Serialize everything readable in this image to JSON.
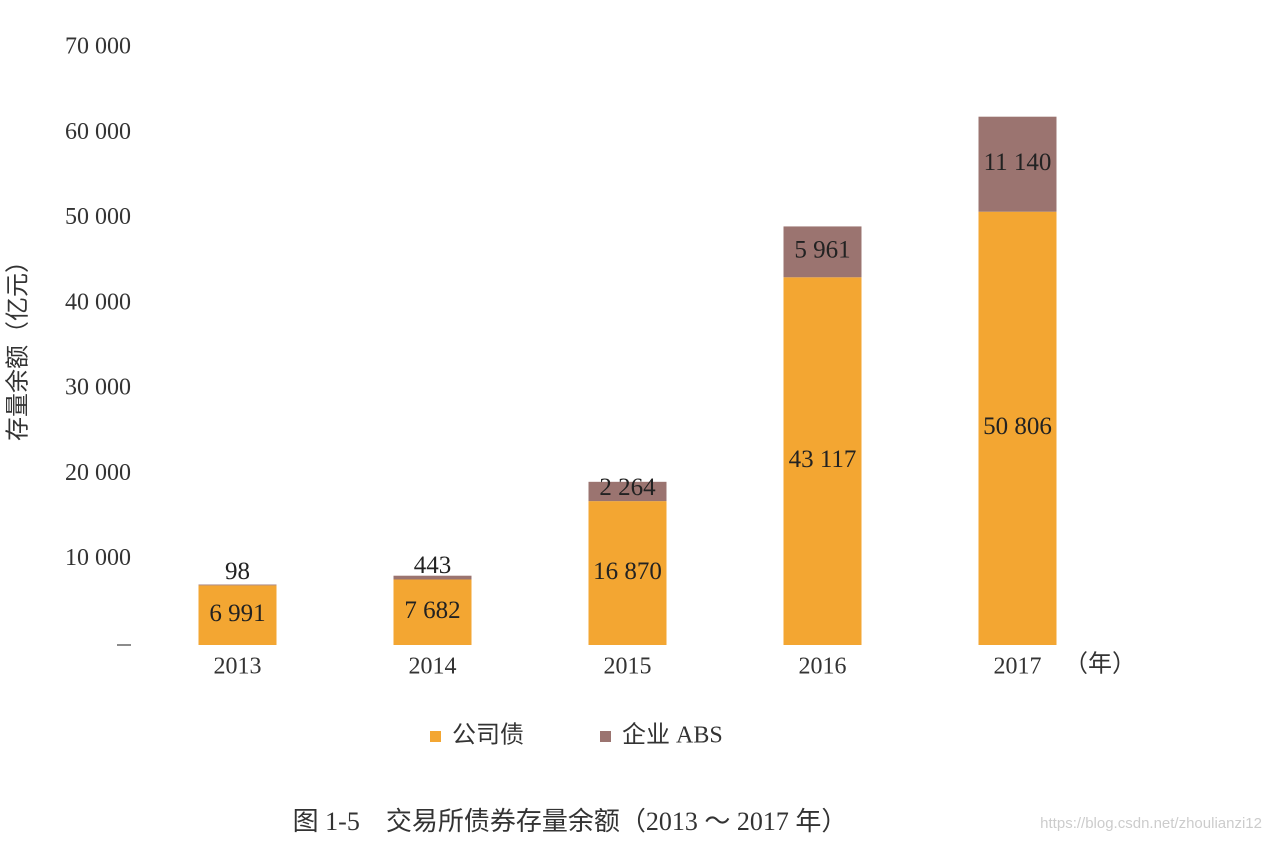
{
  "chart_data": {
    "type": "stacked-bar",
    "caption": "图 1-5　交易所债券存量余额（2013 ～ 2017 年）",
    "y_label": "存量余额（亿元）",
    "x_unit": "（年）",
    "watermark": "https://blog.csdn.net/zhoulianzi12",
    "categories": [
      "2013",
      "2014",
      "2015",
      "2016",
      "2017"
    ],
    "series": [
      {
        "name": "公司债",
        "color": "#f3a632",
        "values": [
          6991,
          7682,
          16870,
          43117,
          50806
        ],
        "value_labels": [
          "6 991",
          "7 682",
          "16 870",
          "43 117",
          "50 806"
        ]
      },
      {
        "name": "企业 ABS",
        "color": "#9b7470",
        "values": [
          98,
          443,
          2264,
          5961,
          11140
        ],
        "value_labels": [
          "98",
          "443",
          "2 264",
          "5 961",
          "11 140"
        ]
      }
    ],
    "ylim": [
      0,
      70000
    ],
    "yticks": [
      {
        "value": 10000,
        "label": "10 000"
      },
      {
        "value": 20000,
        "label": "20 000"
      },
      {
        "value": 30000,
        "label": "30 000"
      },
      {
        "value": 40000,
        "label": "40 000"
      },
      {
        "value": 50000,
        "label": "50 000"
      },
      {
        "value": 60000,
        "label": "60 000"
      },
      {
        "value": 70000,
        "label": "70 000"
      }
    ],
    "grid": false
  }
}
